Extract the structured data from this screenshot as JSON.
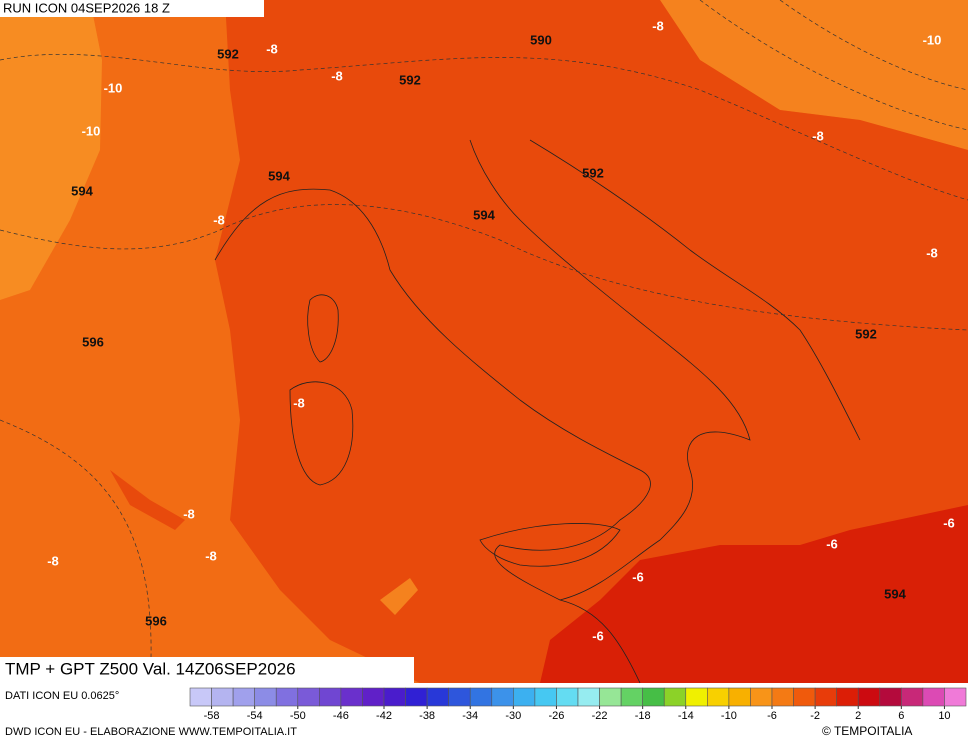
{
  "header": {
    "run": "RUN ICON 04SEP2026 18 Z"
  },
  "map": {
    "contour_labels": [
      "592",
      "-8",
      "-8",
      "592",
      "590",
      "-8",
      "-10",
      "-10",
      "-10",
      "594",
      "594",
      "-8",
      "594",
      "592",
      "-8",
      "-8",
      "596",
      "592",
      "-8",
      "-8",
      "-8",
      "-8",
      "-6",
      "-6",
      "-6",
      "-6",
      "596",
      "594"
    ]
  },
  "footer": {
    "title": "TMP + GPT Z500 Val. 14Z06SEP2026",
    "source": "DATI ICON EU 0.0625°",
    "credit": "DWD ICON EU - ELABORAZIONE WWW.TEMPOITALIA.IT",
    "brand": "© TEMPOITALIA"
  },
  "colorbar": {
    "range": [
      -60,
      12
    ],
    "ticks": [
      -58,
      -54,
      -50,
      -46,
      -42,
      -38,
      -34,
      -30,
      -26,
      -22,
      -18,
      -14,
      -10,
      -6,
      -2,
      2,
      6,
      10
    ],
    "colors": [
      "#c8c8f8",
      "#b4b4f0",
      "#a0a0ec",
      "#8c8ce6",
      "#8070e0",
      "#7a5ad8",
      "#7046d2",
      "#6a30cc",
      "#6020c8",
      "#4a1ccc",
      "#3020d4",
      "#2838d8",
      "#2e56dc",
      "#3274e2",
      "#3c92ea",
      "#3cb0f0",
      "#46c8f2",
      "#64dcf2",
      "#96ecf0",
      "#96e696",
      "#64d264",
      "#46be46",
      "#8cd228",
      "#f0f000",
      "#f8d000",
      "#f8b000",
      "#f89418",
      "#f47a14",
      "#f05a0c",
      "#e83c0a",
      "#dc1e06",
      "#cc0a10",
      "#b40a3c",
      "#c82878",
      "#dc4ab4",
      "#f07ad8"
    ]
  }
}
